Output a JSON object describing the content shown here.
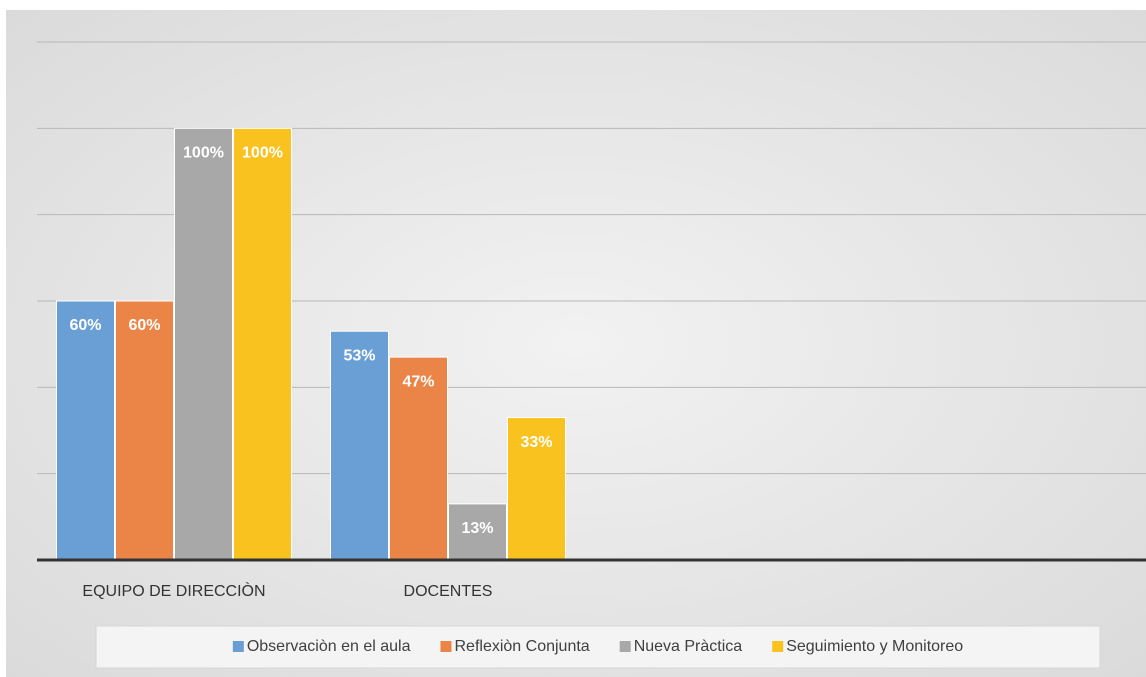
{
  "chart_data": {
    "type": "bar",
    "categories": [
      "EQUIPO DE DIRECCIÒN",
      "DOCENTES"
    ],
    "series": [
      {
        "name": "Observaciòn en el aula",
        "color": "#6a9fd6",
        "values": [
          60,
          53
        ],
        "value_labels": [
          "60%",
          "53%"
        ]
      },
      {
        "name": "Reflexiòn Conjunta",
        "color": "#eb8447",
        "values": [
          60,
          47
        ],
        "value_labels": [
          "60%",
          "47%"
        ]
      },
      {
        "name": "Nueva Pràctica",
        "color": "#a8a8a8",
        "values": [
          100,
          13
        ],
        "value_labels": [
          "100%",
          "13%"
        ]
      },
      {
        "name": "Seguimiento y Monitoreo",
        "color": "#fac21f",
        "values": [
          100,
          33
        ],
        "value_labels": [
          "100%",
          "33%"
        ]
      }
    ],
    "ylim": [
      0,
      120
    ],
    "yticks": [
      0,
      20,
      40,
      60,
      80,
      100,
      120
    ],
    "grid": true,
    "legend": "bottom"
  }
}
